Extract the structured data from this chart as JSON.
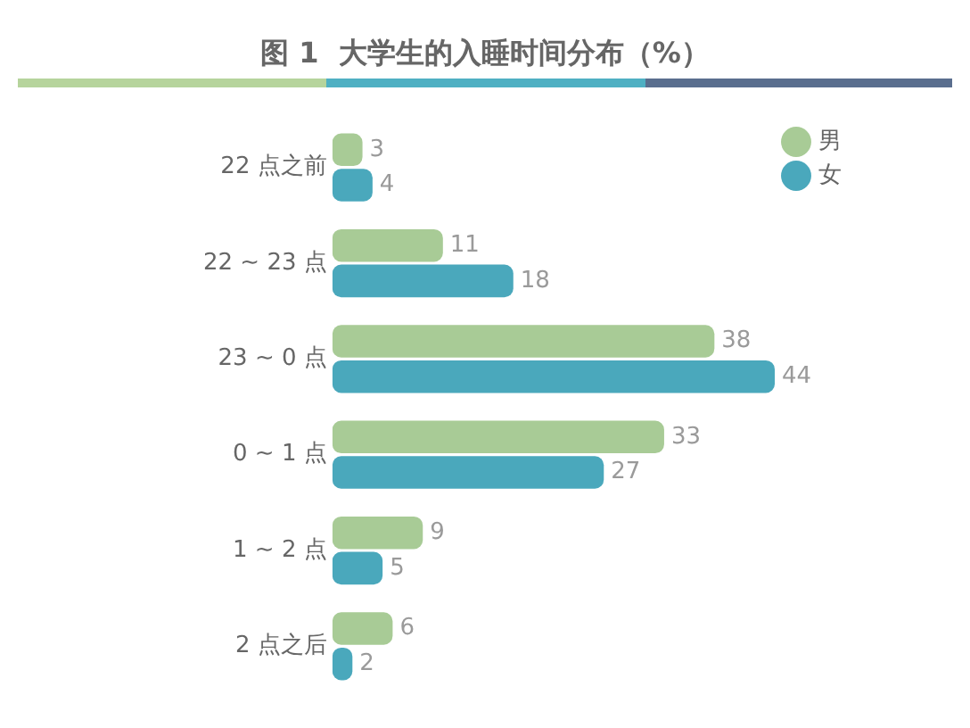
{
  "chart_data": {
    "type": "bar",
    "orientation": "horizontal",
    "title": "图 1  大学生的入睡时间分布（%）",
    "categories": [
      "22 点之前",
      "22 ~ 23 点",
      "23 ~ 0 点",
      "0 ~ 1 点",
      "1 ~ 2 点",
      "2 点之后"
    ],
    "series": [
      {
        "name": "男",
        "color": "#a8cb96",
        "values": [
          3,
          11,
          38,
          33,
          9,
          6
        ]
      },
      {
        "name": "女",
        "color": "#4aa8bc",
        "values": [
          4,
          18,
          44,
          27,
          5,
          2
        ]
      }
    ],
    "data_labels": true,
    "legend": "top right"
  }
}
